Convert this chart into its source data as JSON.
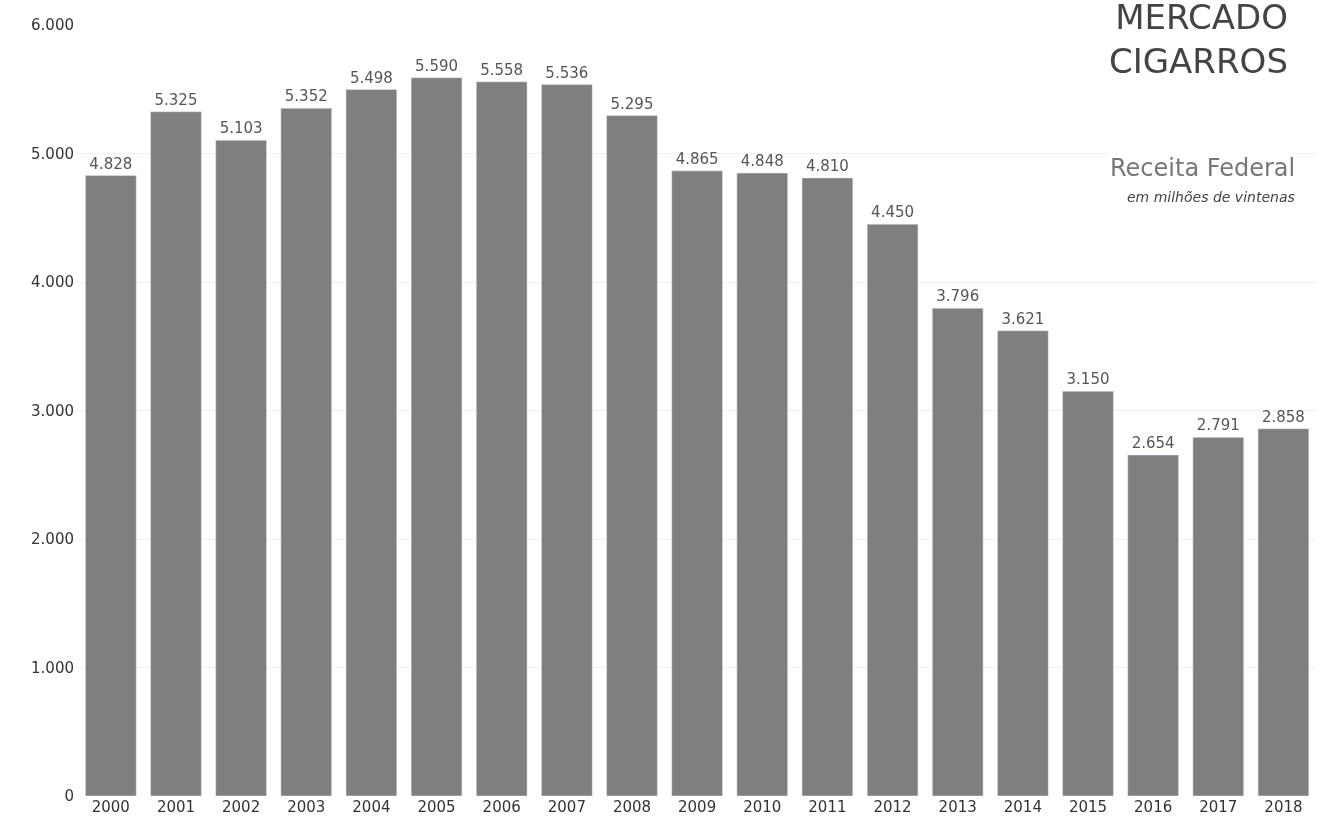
{
  "chart_data": {
    "type": "bar",
    "title": "MERCADO\nCIGARROS",
    "subtitle": "Receita Federal",
    "annotations": [
      "em milhões de vintenas"
    ],
    "categories": [
      "2000",
      "2001",
      "2002",
      "2003",
      "2004",
      "2005",
      "2006",
      "2007",
      "2008",
      "2009",
      "2010",
      "2011",
      "2012",
      "2013",
      "2014",
      "2015",
      "2016",
      "2017",
      "2018"
    ],
    "values": [
      4828,
      5325,
      5103,
      5352,
      5498,
      5590,
      5558,
      5536,
      5295,
      4865,
      4848,
      4810,
      4450,
      3796,
      3621,
      3150,
      2654,
      2791,
      2858
    ],
    "value_labels": [
      "4.828",
      "5.325",
      "5.103",
      "5.352",
      "5.498",
      "5.590",
      "5.558",
      "5.536",
      "5.295",
      "4.865",
      "4.848",
      "4.810",
      "4.450",
      "3.796",
      "3.621",
      "3.150",
      "2.654",
      "2.791",
      "2.858"
    ],
    "color": "#7f7f80",
    "ylim": [
      0,
      6000
    ],
    "yticks": [
      {
        "value": 0,
        "label": "0"
      },
      {
        "value": 1000,
        "label": "1.000"
      },
      {
        "value": 2000,
        "label": "2.000"
      },
      {
        "value": 3000,
        "label": "3.000"
      },
      {
        "value": 4000,
        "label": "4.000"
      },
      {
        "value": 5000,
        "label": "5.000"
      },
      {
        "value": 6000,
        "label": "6.000"
      }
    ],
    "grid": "y"
  }
}
